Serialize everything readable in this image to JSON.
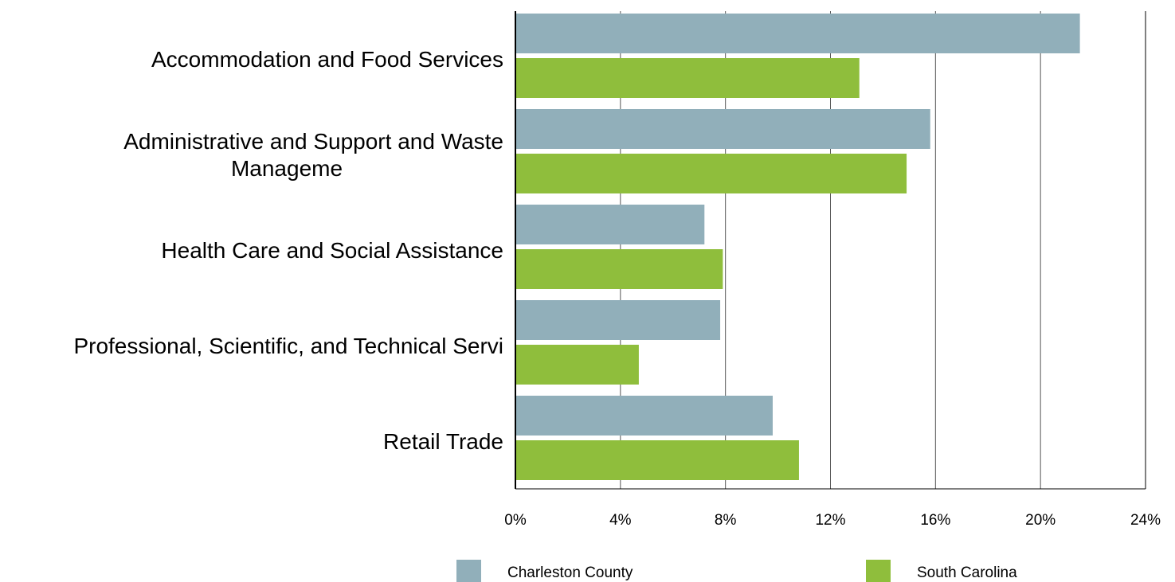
{
  "chart_data": {
    "type": "bar",
    "orientation": "horizontal",
    "categories": [
      [
        "Accommodation and Food Services"
      ],
      [
        "Administrative and Support and Waste",
        "Manageme"
      ],
      [
        "Health Care and Social Assistance"
      ],
      [
        "Professional, Scientific, and Technical Servi"
      ],
      [
        "Retail Trade"
      ]
    ],
    "series": [
      {
        "name": "Charleston County",
        "color": "#91AFBA",
        "values": [
          21.5,
          15.8,
          7.2,
          7.8,
          9.8
        ]
      },
      {
        "name": "South Carolina",
        "color": "#8FBE3C",
        "values": [
          13.1,
          14.9,
          7.9,
          4.7,
          10.8
        ]
      }
    ],
    "xlim": [
      0,
      24
    ],
    "xticks": [
      "0%",
      "4%",
      "8%",
      "12%",
      "16%",
      "20%",
      "24%"
    ],
    "xtick_values": [
      0,
      4,
      8,
      12,
      16,
      20,
      24
    ],
    "grid": true,
    "legend_position": "bottom",
    "title": "",
    "xlabel": "",
    "ylabel": ""
  }
}
